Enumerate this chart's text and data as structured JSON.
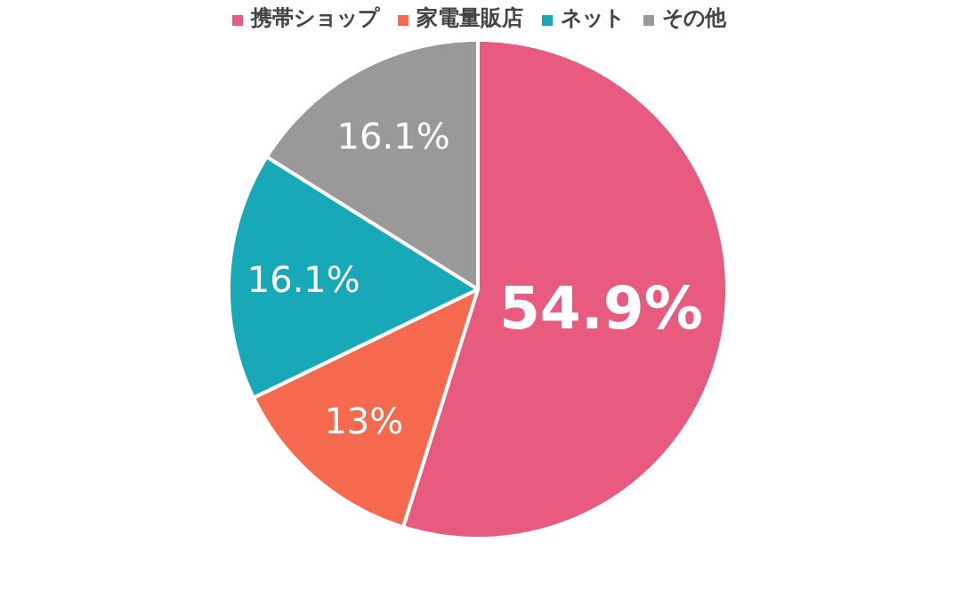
{
  "chart_data": {
    "type": "pie",
    "categories": [
      "携帯ショップ",
      "家電量販店",
      "ネット",
      "その他"
    ],
    "values": [
      54.9,
      13,
      16.1,
      16.1
    ],
    "colors": [
      "#e85a7e",
      "#f5694f",
      "#17a9b8",
      "#999999"
    ],
    "value_labels": [
      "54.9%",
      "13%",
      "16.1%",
      "16.1%"
    ],
    "legend": "top"
  }
}
